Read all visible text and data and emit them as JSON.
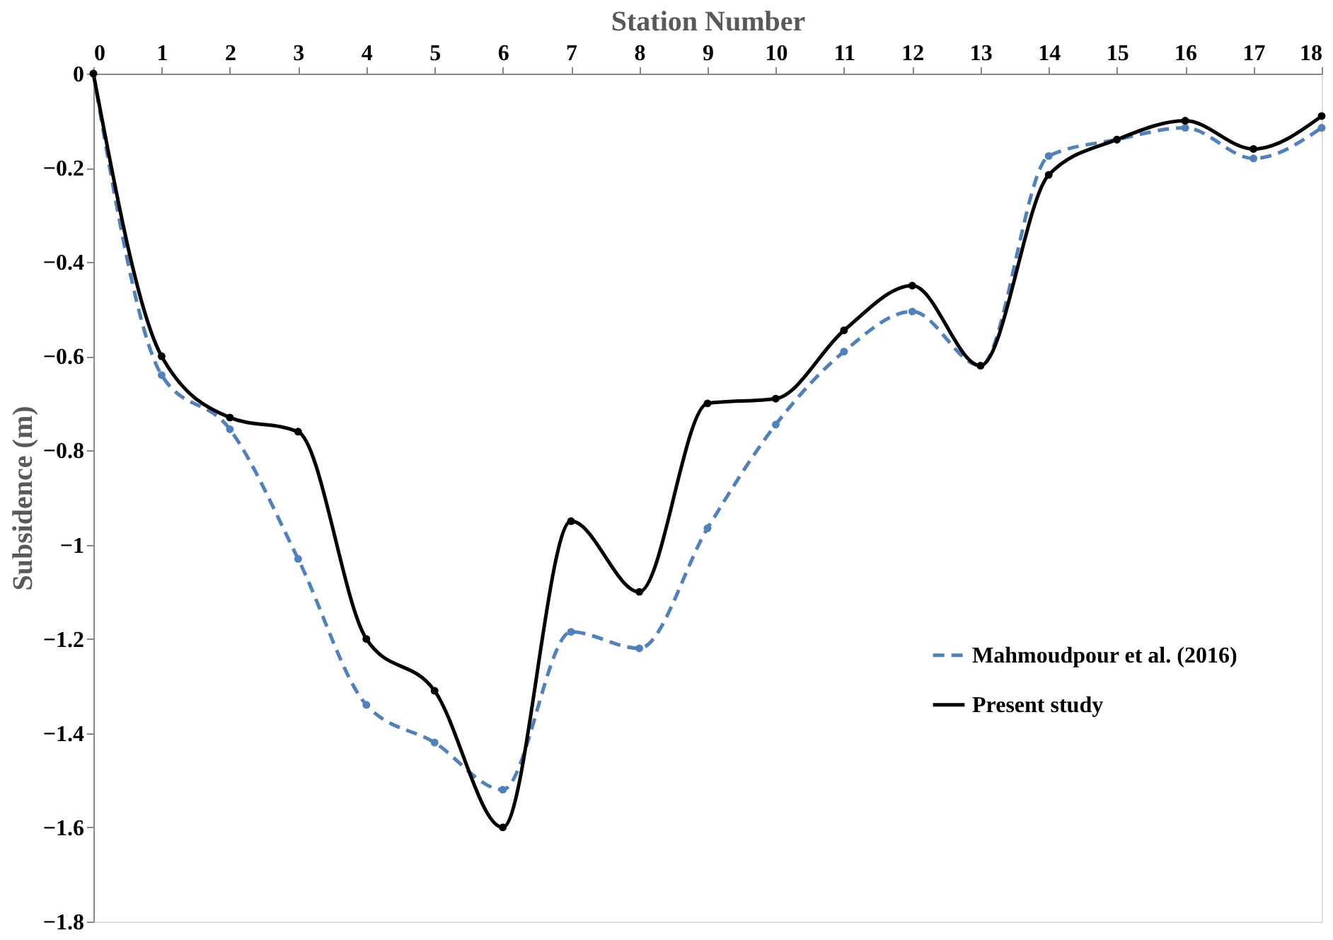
{
  "chart_data": {
    "type": "line",
    "xlabel": "Station Number",
    "ylabel": "Subsidence (m)",
    "x": [
      0,
      1,
      2,
      3,
      4,
      5,
      6,
      7,
      8,
      9,
      10,
      11,
      12,
      13,
      14,
      15,
      16,
      17,
      18
    ],
    "xlim": [
      0,
      18
    ],
    "xticks": [
      0,
      1,
      2,
      3,
      4,
      5,
      6,
      7,
      8,
      9,
      10,
      11,
      12,
      13,
      14,
      15,
      16,
      17,
      18
    ],
    "ylim": [
      -1.8,
      0
    ],
    "yticks": [
      -1.8,
      -1.6,
      -1.4,
      -1.2,
      -1,
      -0.8,
      -0.6,
      -0.4,
      -0.2,
      0
    ],
    "grid": false,
    "legend": "right",
    "marker": "circle",
    "series": [
      {
        "name": "Mahmoudpour et al. (2016)",
        "color": "#4f81bd",
        "line_style": "dashed",
        "values": [
          0,
          -0.64,
          -0.755,
          -1.03,
          -1.34,
          -1.42,
          -1.52,
          -1.185,
          -1.22,
          -0.965,
          -0.745,
          -0.59,
          -0.505,
          -0.62,
          -0.175,
          -0.14,
          -0.115,
          -0.18,
          -0.115
        ]
      },
      {
        "name": "Present study",
        "color": "#000000",
        "line_style": "solid",
        "values": [
          0,
          -0.6,
          -0.73,
          -0.76,
          -1.2,
          -1.31,
          -1.6,
          -0.95,
          -1.1,
          -0.7,
          -0.69,
          -0.545,
          -0.45,
          -0.62,
          -0.215,
          -0.14,
          -0.1,
          -0.16,
          -0.09
        ]
      }
    ]
  }
}
